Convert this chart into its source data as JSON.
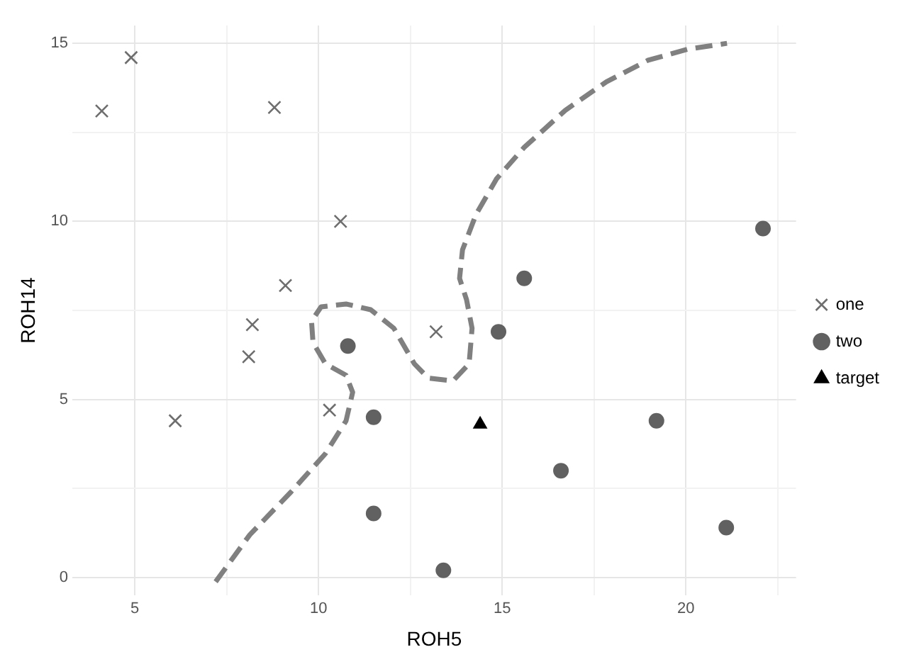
{
  "chart_data": {
    "type": "scatter",
    "xlabel": "ROH5",
    "ylabel": "ROH14",
    "xlim": [
      3.3,
      23
    ],
    "ylim": [
      -0.5,
      15.5
    ],
    "xticks": [
      5,
      {
        "value": 7.5,
        "label": null
      },
      10,
      {
        "value": 12.5,
        "label": null
      },
      15,
      {
        "value": 17.5,
        "label": null
      },
      20,
      {
        "value": 22.5,
        "label": null
      }
    ],
    "yticks": [
      0,
      {
        "value": 2.5,
        "label": null
      },
      5,
      {
        "value": 7.5,
        "label": null
      },
      10,
      {
        "value": 12.5,
        "label": null
      },
      15
    ],
    "grid": true,
    "legend": "right",
    "series": [
      {
        "name": "one",
        "marker": "cross",
        "color": "#6e6e6e",
        "x": [
          4.1,
          4.9,
          8.8,
          10.6,
          9.1,
          8.2,
          8.1,
          6.1,
          10.3,
          13.2
        ],
        "values": [
          13.1,
          14.6,
          13.2,
          10.0,
          8.2,
          7.1,
          6.2,
          4.4,
          4.7,
          6.9
        ]
      },
      {
        "name": "two",
        "marker": "circle",
        "color": "#616161",
        "x": [
          10.8,
          11.5,
          11.5,
          13.4,
          14.9,
          15.6,
          16.6,
          19.2,
          21.1,
          22.1
        ],
        "values": [
          6.5,
          4.5,
          1.8,
          0.2,
          6.9,
          8.4,
          3.0,
          4.4,
          1.4,
          9.8
        ]
      },
      {
        "name": "target",
        "marker": "triangle",
        "color": "#000000",
        "x": [
          14.4
        ],
        "values": [
          4.3
        ]
      },
      {
        "type": "line",
        "marker": "none",
        "line_style": "dashed",
        "color": "#808080",
        "x": [
          7.2,
          8.13,
          9.25,
          10.19,
          10.75,
          10.93,
          10.75,
          10.19,
          9.85,
          9.81,
          10.07,
          10.75,
          11.42,
          12.05,
          12.61,
          12.99,
          13.66,
          14.1,
          14.18,
          14.03,
          13.84,
          13.92,
          14.29,
          14.85,
          15.6,
          16.72,
          17.84,
          18.96,
          20.07,
          21.12
        ],
        "values": [
          -0.12,
          1.2,
          2.4,
          3.48,
          4.4,
          5.2,
          5.68,
          6.0,
          6.6,
          7.2,
          7.6,
          7.68,
          7.52,
          7.0,
          6.0,
          5.6,
          5.52,
          6.0,
          7.0,
          7.8,
          8.4,
          9.2,
          10.2,
          11.2,
          12.08,
          13.12,
          13.92,
          14.52,
          14.84,
          15.0
        ]
      }
    ]
  }
}
